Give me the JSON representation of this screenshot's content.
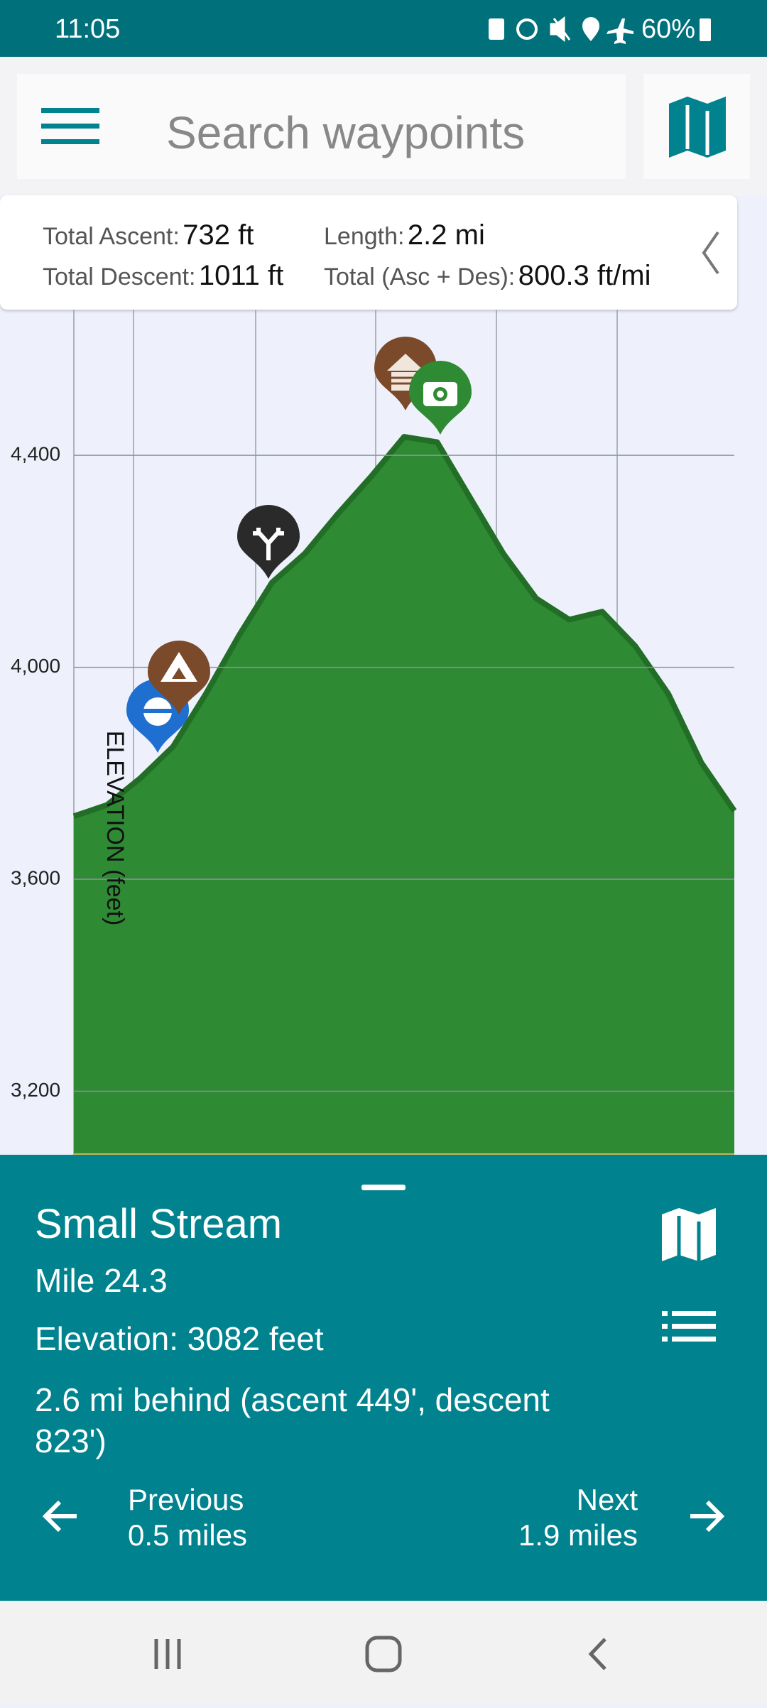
{
  "status_bar": {
    "time": "11:05",
    "battery": "60%"
  },
  "search": {
    "placeholder": "Search waypoints"
  },
  "stats": {
    "total_ascent_label": "Total Ascent:",
    "total_ascent": "732 ft",
    "length_label": "Length:",
    "length": "2.2 mi",
    "total_descent_label": "Total Descent:",
    "total_descent": "1011 ft",
    "total_label": "Total (Asc + Des):",
    "total": "800.3 ft/mi"
  },
  "chart_data": {
    "type": "area",
    "y_label": "ELEVATION (feet)",
    "color": "#2f8a34",
    "values": [
      3719,
      3740,
      3790,
      3850,
      3950,
      4060,
      4160,
      4215,
      4290,
      4360,
      4435,
      4425,
      4320,
      4215,
      4130,
      4090,
      4105,
      4040,
      3950,
      3820,
      3729
    ],
    "ylim": [
      3080,
      4675
    ],
    "yticks": [
      {
        "value": 3200,
        "label": "3,200"
      },
      {
        "value": 3600,
        "label": "3,600"
      },
      {
        "value": 4000,
        "label": "4,000"
      },
      {
        "value": 4400,
        "label": "4,400"
      }
    ],
    "grid": true
  },
  "waypoint": {
    "title": "Small Stream",
    "mile": "Mile 24.3",
    "elevation": "Elevation: 3082 feet",
    "behind": "2.6 mi behind (ascent 449', descent 823')",
    "previous_label": "Previous",
    "previous_distance": "0.5 miles",
    "next_label": "Next",
    "next_distance": "1.9 miles"
  }
}
